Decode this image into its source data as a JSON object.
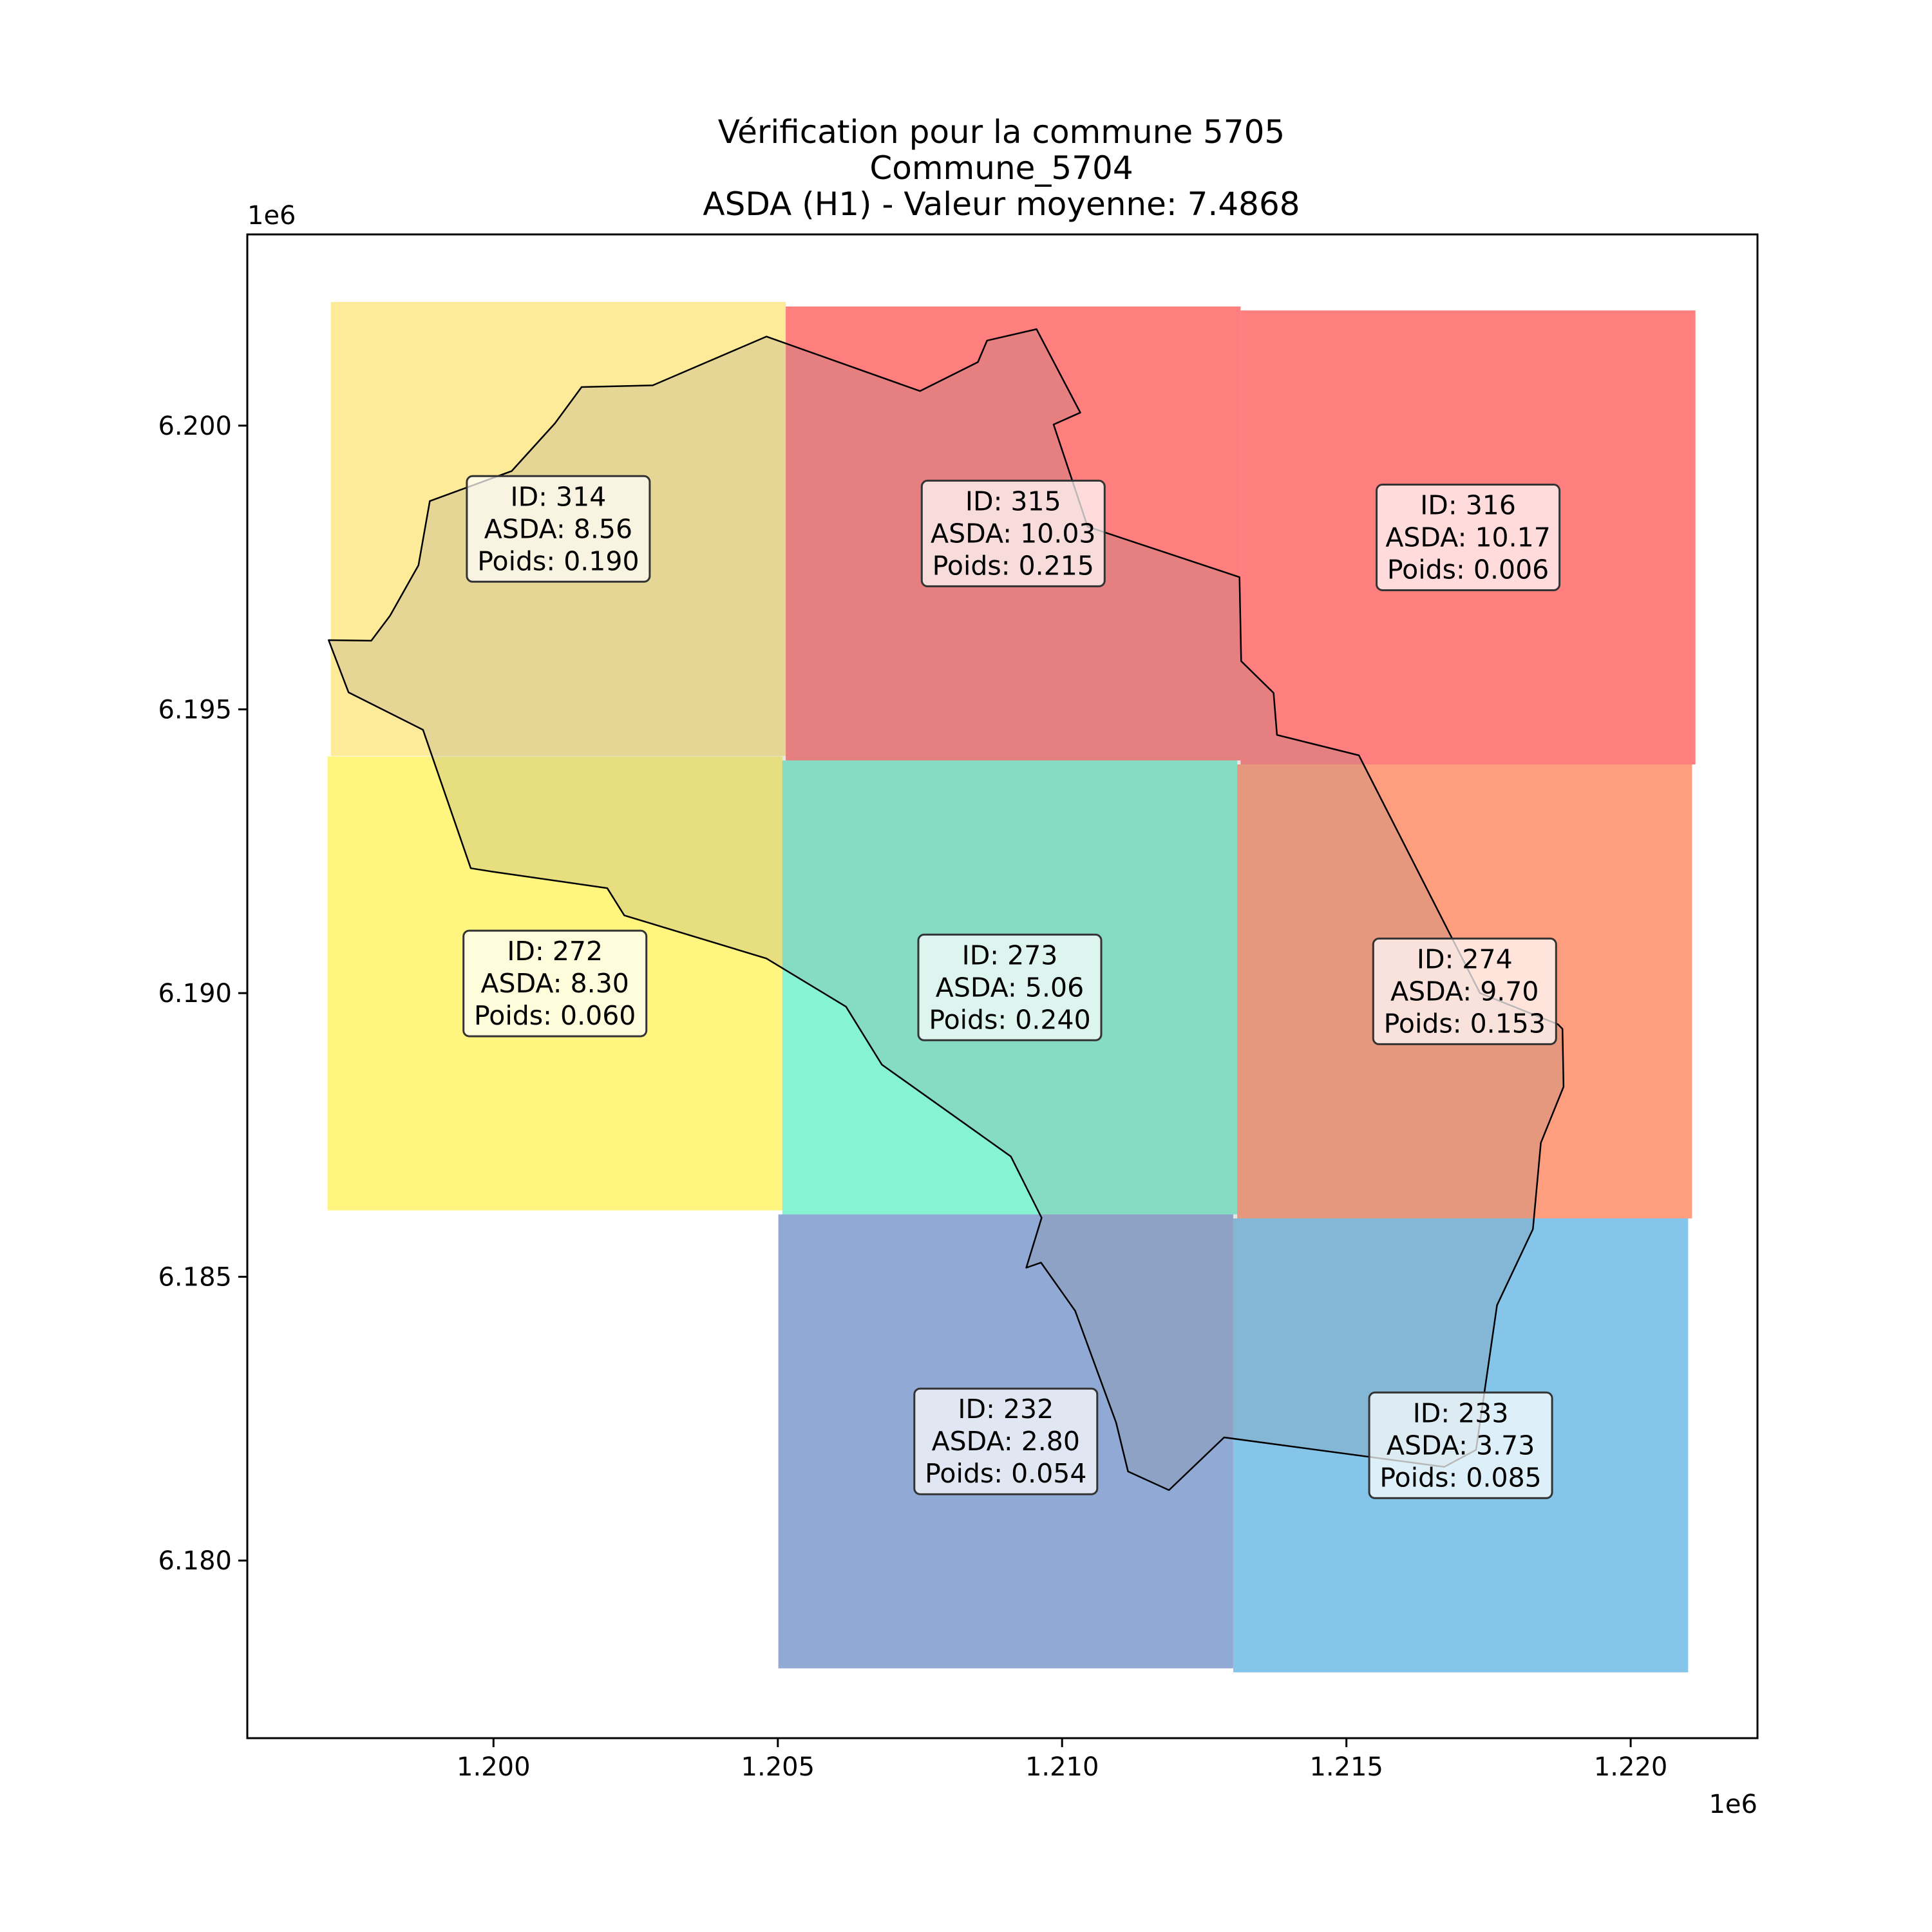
{
  "chart_data": {
    "type": "map",
    "title_lines": [
      "Vérification pour la commune 5705",
      "Commune_5704",
      "ASDA (H1) - Valeur moyenne: 7.4868"
    ],
    "x_axis": {
      "offset_label": "1e6",
      "range": [
        1.19567,
        1.22223
      ],
      "ticks": [
        1.2,
        1.205,
        1.21,
        1.215,
        1.22
      ],
      "tick_labels": [
        "1.200",
        "1.205",
        "1.210",
        "1.215",
        "1.220"
      ]
    },
    "y_axis": {
      "offset_label": "1e6",
      "range": [
        6.17687,
        6.20337
      ],
      "ticks": [
        6.18,
        6.185,
        6.19,
        6.195,
        6.2
      ],
      "tick_labels": [
        "6.180",
        "6.185",
        "6.190",
        "6.195",
        "6.200"
      ]
    },
    "grid": false,
    "cells": [
      {
        "id": 314,
        "asda": 8.56,
        "poids": 0.19,
        "color": "#fdd835",
        "x0": 1.19714,
        "x1": 1.20514,
        "y0": 6.19418,
        "y1": 6.20218,
        "label_lines": [
          "ID: 314",
          "ASDA: 8.56",
          "Poids: 0.190"
        ]
      },
      {
        "id": 315,
        "asda": 10.03,
        "poids": 0.215,
        "color": "#ff0000",
        "x0": 1.20514,
        "x1": 1.21314,
        "y0": 6.1941,
        "y1": 6.2021,
        "label_lines": [
          "ID: 315",
          "ASDA: 10.03",
          "Poids: 0.215"
        ]
      },
      {
        "id": 316,
        "asda": 10.17,
        "poids": 0.006,
        "color": "#ff0000",
        "x0": 1.21314,
        "x1": 1.22114,
        "y0": 6.19403,
        "y1": 6.20203,
        "label_lines": [
          "ID: 316",
          "ASDA: 10.17",
          "Poids: 0.006"
        ]
      },
      {
        "id": 272,
        "asda": 8.3,
        "poids": 0.06,
        "color": "#ffeb00",
        "x0": 1.19708,
        "x1": 1.20508,
        "y0": 6.18617,
        "y1": 6.19417,
        "label_lines": [
          "ID: 272",
          "ASDA: 8.30",
          "Poids: 0.060"
        ]
      },
      {
        "id": 273,
        "asda": 5.06,
        "poids": 0.24,
        "color": "#0de8a8",
        "x0": 1.20508,
        "x1": 1.21308,
        "y0": 6.1861,
        "y1": 6.1941,
        "label_lines": [
          "ID: 273",
          "ASDA: 5.06",
          "Poids: 0.240"
        ]
      },
      {
        "id": 274,
        "asda": 9.7,
        "poids": 0.153,
        "color": "#ff3d00",
        "x0": 1.21308,
        "x1": 1.22108,
        "y0": 6.18603,
        "y1": 6.19403,
        "label_lines": [
          "ID: 274",
          "ASDA: 9.70",
          "Poids: 0.153"
        ]
      },
      {
        "id": 232,
        "asda": 2.8,
        "poids": 0.054,
        "color": "#2156ac",
        "x0": 1.20501,
        "x1": 1.21301,
        "y0": 6.1781,
        "y1": 6.1861,
        "label_lines": [
          "ID: 232",
          "ASDA: 2.80",
          "Poids: 0.054"
        ]
      },
      {
        "id": 233,
        "asda": 3.73,
        "poids": 0.085,
        "color": "#0b8cd5",
        "x0": 1.21301,
        "x1": 1.22101,
        "y0": 6.17803,
        "y1": 6.18603,
        "label_lines": [
          "ID: 233",
          "ASDA: 3.73",
          "Poids: 0.085"
        ]
      }
    ],
    "commune_outline": [
      [
        1.1971,
        6.19622
      ],
      [
        1.19785,
        6.19621
      ],
      [
        1.19818,
        6.19665
      ],
      [
        1.19868,
        6.19754
      ],
      [
        1.19888,
        6.19867
      ],
      [
        1.20032,
        6.1992
      ],
      [
        1.20108,
        6.20004
      ],
      [
        1.20155,
        6.20068
      ],
      [
        1.2028,
        6.20071
      ],
      [
        1.2048,
        6.20157
      ],
      [
        1.2075,
        6.20061
      ],
      [
        1.20852,
        6.20112
      ],
      [
        1.20868,
        6.2015
      ],
      [
        1.20955,
        6.2017
      ],
      [
        1.21032,
        6.20023
      ],
      [
        1.20985,
        6.20002
      ],
      [
        1.21045,
        6.19822
      ],
      [
        1.21312,
        6.19733
      ],
      [
        1.21315,
        6.19585
      ],
      [
        1.21372,
        6.19529
      ],
      [
        1.21378,
        6.19455
      ],
      [
        1.21522,
        6.19419
      ],
      [
        1.21735,
        6.19
      ],
      [
        1.21872,
        6.18945
      ],
      [
        1.2188,
        6.18937
      ],
      [
        1.21882,
        6.18835
      ],
      [
        1.21842,
        6.18736
      ],
      [
        1.21828,
        6.18584
      ],
      [
        1.21765,
        6.1845
      ],
      [
        1.21728,
        6.18195
      ],
      [
        1.21672,
        6.18165
      ],
      [
        1.21285,
        6.18217
      ],
      [
        1.21188,
        6.18124
      ],
      [
        1.21116,
        6.18157
      ],
      [
        1.21095,
        6.18243
      ],
      [
        1.21023,
        6.1844
      ],
      [
        1.20963,
        6.18525
      ],
      [
        1.20937,
        6.18516
      ],
      [
        1.20964,
        6.18604
      ],
      [
        1.2091,
        6.18712
      ],
      [
        1.20683,
        6.18874
      ],
      [
        1.2062,
        6.18976
      ],
      [
        1.2048,
        6.19061
      ],
      [
        1.2023,
        6.19137
      ],
      [
        1.202,
        6.19185
      ],
      [
        1.19998,
        6.19214
      ],
      [
        1.1996,
        6.1922
      ],
      [
        1.19876,
        6.19464
      ],
      [
        1.19745,
        6.1953
      ],
      [
        1.1971,
        6.19622
      ]
    ]
  }
}
